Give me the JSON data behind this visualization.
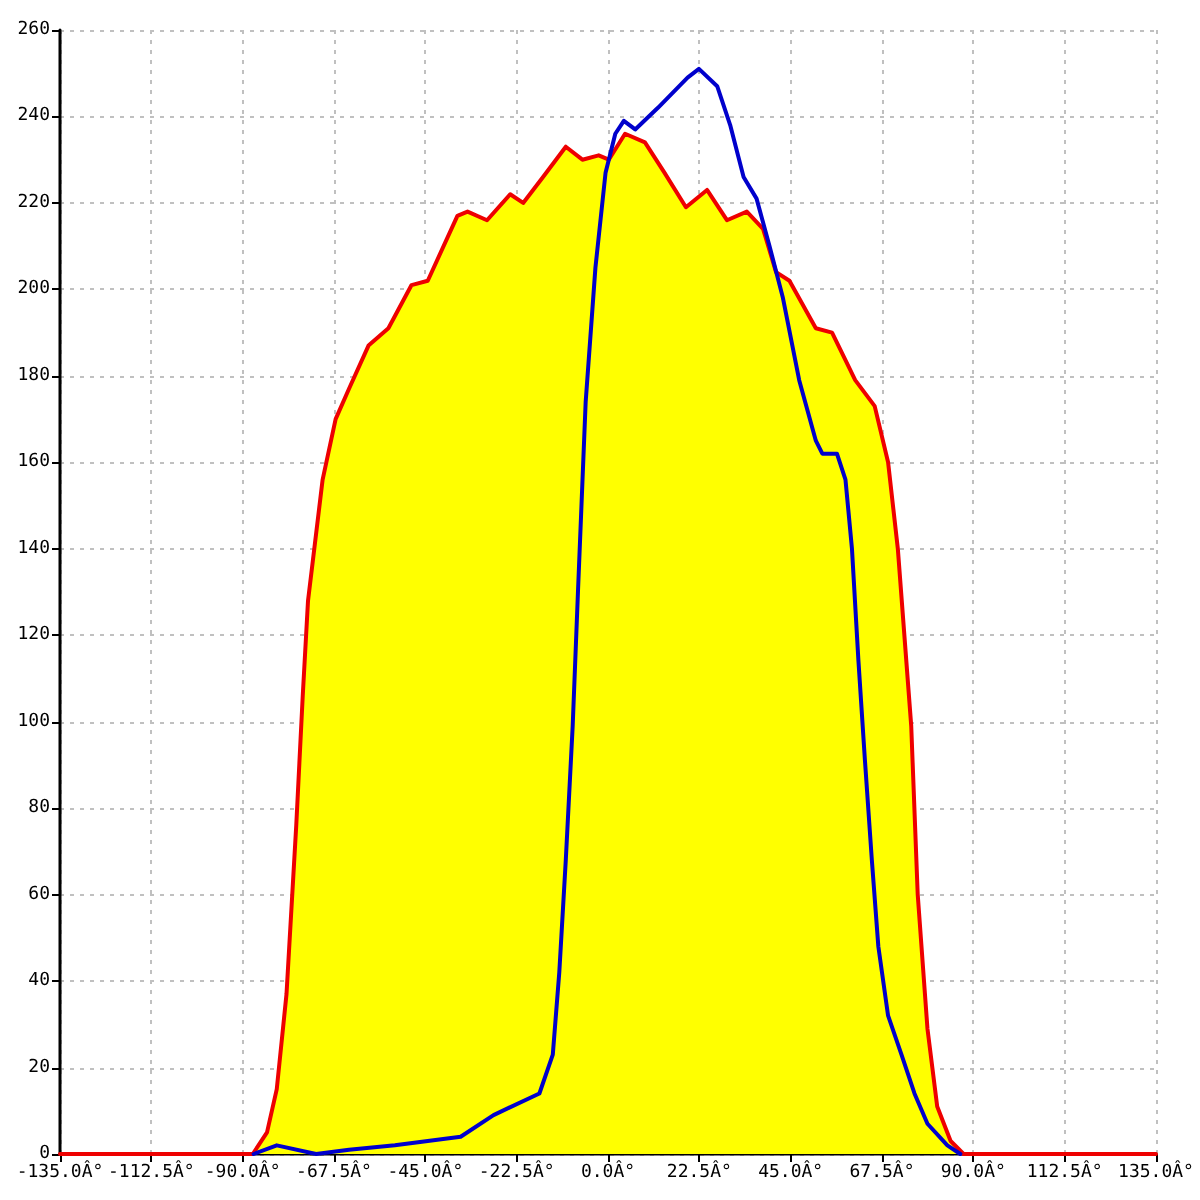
{
  "chart_data": {
    "type": "line",
    "grid": true,
    "marker": "none",
    "line_style": "solid",
    "xlim": [
      -135,
      135
    ],
    "xticks": [
      {
        "value": -135,
        "label": "-135.0Â°"
      },
      {
        "value": -112.5,
        "label": "-112.5Â°"
      },
      {
        "value": -90,
        "label": "-90.0Â°"
      },
      {
        "value": -67.5,
        "label": "-67.5Â°"
      },
      {
        "value": -45,
        "label": "-45.0Â°"
      },
      {
        "value": -22.5,
        "label": "-22.5Â°"
      },
      {
        "value": 0,
        "label": "0.0Â°"
      },
      {
        "value": 22.5,
        "label": "22.5Â°"
      },
      {
        "value": 45,
        "label": "45.0Â°"
      },
      {
        "value": 67.5,
        "label": "67.5Â°"
      },
      {
        "value": 90,
        "label": "90.0Â°"
      },
      {
        "value": 112.5,
        "label": "112.5Â°"
      },
      {
        "value": 135,
        "label": "135.0Â°"
      }
    ],
    "ylim": [
      0,
      260
    ],
    "yticks": [
      0,
      20,
      40,
      60,
      80,
      100,
      120,
      140,
      160,
      180,
      200,
      220,
      240,
      260
    ],
    "series": [
      {
        "type": "area",
        "color": "#ffff00",
        "x": [
          -87.5,
          -84,
          -81.6,
          -79.2,
          -76.8,
          -75.2,
          -73.9,
          -70.3,
          -67.1,
          -63.8,
          -59,
          -54.1,
          -48.4,
          -44.4,
          -37.1,
          -34.6,
          -29.8,
          -24.1,
          -20.9,
          -16,
          -10.4,
          -6.3,
          -2.3,
          0.2,
          4.2,
          9.1,
          13.9,
          19.2,
          24.4,
          29.3,
          34.2,
          38.2,
          41.4,
          44.7,
          51.2,
          55.2,
          60.9,
          65.7,
          69,
          71.4,
          74.7,
          76.3,
          78.7,
          81.1,
          84.4,
          87.6
        ],
        "values": [
          0,
          5,
          15,
          37,
          76,
          106,
          128,
          156,
          170,
          177,
          187,
          191,
          201,
          202,
          217,
          218,
          216,
          222,
          220,
          226,
          233,
          230,
          231,
          230,
          236,
          234,
          227,
          219,
          223,
          216,
          218,
          214,
          204,
          202,
          191,
          190,
          179,
          173,
          160,
          140,
          99,
          60,
          29,
          11,
          3,
          0
        ]
      },
      {
        "color": "#ee0000",
        "x": [
          -135,
          -87.5,
          -84,
          -81.6,
          -79.2,
          -76.8,
          -75.2,
          -73.9,
          -70.3,
          -67.1,
          -63.8,
          -59,
          -54.1,
          -48.4,
          -44.4,
          -37.1,
          -34.6,
          -29.8,
          -24.1,
          -20.9,
          -16,
          -10.4,
          -6.3,
          -2.3,
          0.2,
          4.2,
          9.1,
          13.9,
          19.2,
          24.4,
          29.3,
          34.2,
          38.2,
          41.4,
          44.7,
          51.2,
          55.2,
          60.9,
          65.7,
          69,
          71.4,
          74.7,
          76.3,
          78.7,
          81.1,
          84.4,
          87.6,
          135
        ],
        "values": [
          0,
          0,
          5,
          15,
          37,
          76,
          106,
          128,
          156,
          170,
          177,
          187,
          191,
          201,
          202,
          217,
          218,
          216,
          222,
          220,
          226,
          233,
          230,
          231,
          230,
          236,
          234,
          227,
          219,
          223,
          216,
          218,
          214,
          204,
          202,
          191,
          190,
          179,
          173,
          160,
          140,
          99,
          60,
          29,
          11,
          3,
          0,
          0
        ]
      },
      {
        "color": "#0000cc",
        "x": [
          -87.3,
          -81.6,
          -71.9,
          -63.8,
          -52.5,
          -44.4,
          -36.3,
          -28.2,
          -16.9,
          -13.6,
          -12,
          -10.4,
          -8.7,
          -7.4,
          -5.5,
          -3.1,
          -0.6,
          1.8,
          3.9,
          6.7,
          12.3,
          19.6,
          22.4,
          26.9,
          30.1,
          33.4,
          36.6,
          39.8,
          43.1,
          47.1,
          51.2,
          52.8,
          56.4,
          58.5,
          60.1,
          61.7,
          63.3,
          65,
          66.6,
          69,
          72.3,
          75.5,
          78.7,
          83.6,
          86.8
        ],
        "values": [
          0,
          2,
          0,
          1,
          2,
          3,
          4,
          9,
          14,
          23,
          42,
          68,
          99,
          130,
          174,
          205,
          227,
          236,
          239,
          237,
          242,
          249,
          251,
          247,
          238,
          226,
          221,
          210,
          198,
          179,
          165,
          162,
          162,
          156,
          140,
          114,
          91,
          68,
          48,
          32,
          23,
          14,
          7,
          2,
          0
        ]
      }
    ]
  }
}
